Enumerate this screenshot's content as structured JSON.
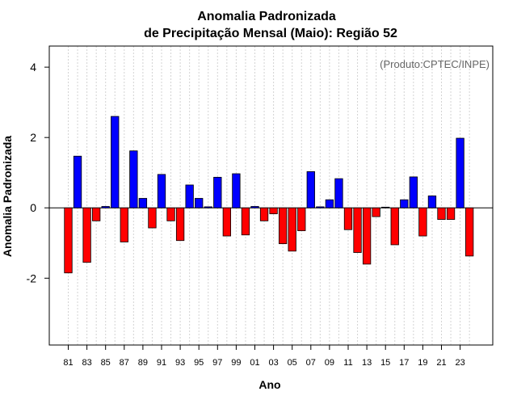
{
  "chart_data": {
    "type": "bar",
    "title_line1": "Anomalia Padronizada",
    "title_line2": "de Precipitação Mensal (Maio): Região 52",
    "xlabel": "Ano",
    "ylabel": "Anomalia Padronizada",
    "annotation": "(Produto:CPTEC/INPE)",
    "ylim": [
      -3.9,
      4.6
    ],
    "yticks": [
      -2,
      0,
      2,
      4
    ],
    "ytick_labels": [
      "-2",
      "0",
      "2",
      "4"
    ],
    "grid": true,
    "categories": [
      "81",
      "82",
      "83",
      "84",
      "85",
      "86",
      "87",
      "88",
      "89",
      "90",
      "91",
      "92",
      "93",
      "94",
      "95",
      "96",
      "97",
      "98",
      "99",
      "00",
      "01",
      "02",
      "03",
      "04",
      "05",
      "06",
      "07",
      "08",
      "09",
      "10",
      "11",
      "12",
      "13",
      "14",
      "15",
      "16",
      "17",
      "18",
      "19",
      "20",
      "21",
      "22",
      "23",
      "24"
    ],
    "xtick_labels": [
      "81",
      "83",
      "85",
      "87",
      "89",
      "91",
      "93",
      "95",
      "97",
      "99",
      "01",
      "03",
      "05",
      "07",
      "09",
      "11",
      "13",
      "15",
      "17",
      "19",
      "21",
      "23"
    ],
    "values": [
      -1.85,
      1.47,
      -1.55,
      -0.37,
      0.04,
      2.6,
      -0.97,
      1.62,
      0.27,
      -0.57,
      0.95,
      -0.37,
      -0.93,
      0.65,
      0.27,
      0.03,
      0.87,
      -0.8,
      0.97,
      -0.77,
      0.04,
      -0.37,
      -0.17,
      -1.02,
      -1.23,
      -0.65,
      1.03,
      0.03,
      0.23,
      0.83,
      -0.62,
      -1.27,
      -1.6,
      -0.25,
      0.02,
      -1.05,
      0.23,
      0.88,
      -0.8,
      0.34,
      -0.33,
      -0.33,
      1.98,
      -1.37
    ],
    "colors": {
      "positive": "#0000ff",
      "negative": "#ff0000",
      "outline": "#000000",
      "grid": "#d3d3d3"
    }
  }
}
